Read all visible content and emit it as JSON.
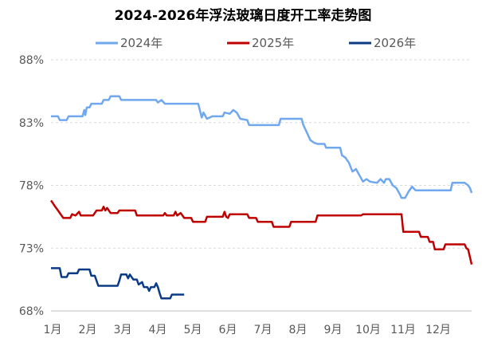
{
  "chart_data": {
    "type": "line",
    "title": "2024-2026年浮法玻璃日度开工率走势图",
    "xlabel": "",
    "ylabel": "",
    "x_ticks": [
      "1月",
      "2月",
      "3月",
      "4月",
      "5月",
      "6月",
      "7月",
      "8月",
      "9月",
      "10月",
      "11月",
      "12月"
    ],
    "y_ticks": [
      "68%",
      "73%",
      "78%",
      "83%",
      "88%"
    ],
    "ylim": [
      68,
      88
    ],
    "xlim": [
      0,
      12
    ],
    "grid": true,
    "legend_position": "top",
    "series": [
      {
        "name": "2024年",
        "color": "#6fa8ef",
        "points": [
          [
            0.0,
            83.5
          ],
          [
            0.2,
            83.5
          ],
          [
            0.25,
            83.2
          ],
          [
            0.45,
            83.2
          ],
          [
            0.5,
            83.5
          ],
          [
            0.9,
            83.5
          ],
          [
            0.95,
            84.0
          ],
          [
            0.98,
            83.6
          ],
          [
            1.02,
            84.2
          ],
          [
            1.1,
            84.2
          ],
          [
            1.15,
            84.5
          ],
          [
            1.45,
            84.5
          ],
          [
            1.5,
            84.8
          ],
          [
            1.65,
            84.8
          ],
          [
            1.7,
            85.1
          ],
          [
            1.95,
            85.1
          ],
          [
            2.0,
            84.8
          ],
          [
            3.0,
            84.8
          ],
          [
            3.05,
            84.6
          ],
          [
            3.15,
            84.8
          ],
          [
            3.25,
            84.5
          ],
          [
            4.2,
            84.5
          ],
          [
            4.3,
            83.4
          ],
          [
            4.35,
            83.8
          ],
          [
            4.45,
            83.3
          ],
          [
            4.6,
            83.5
          ],
          [
            4.9,
            83.5
          ],
          [
            4.95,
            83.8
          ],
          [
            5.1,
            83.7
          ],
          [
            5.2,
            84.0
          ],
          [
            5.3,
            83.8
          ],
          [
            5.4,
            83.3
          ],
          [
            5.6,
            83.2
          ],
          [
            5.65,
            82.8
          ],
          [
            6.5,
            82.8
          ],
          [
            6.55,
            83.3
          ],
          [
            7.15,
            83.3
          ],
          [
            7.2,
            82.8
          ],
          [
            7.3,
            82.2
          ],
          [
            7.4,
            81.6
          ],
          [
            7.5,
            81.4
          ],
          [
            7.6,
            81.3
          ],
          [
            7.8,
            81.3
          ],
          [
            7.85,
            81.0
          ],
          [
            8.25,
            81.0
          ],
          [
            8.3,
            80.4
          ],
          [
            8.4,
            80.2
          ],
          [
            8.5,
            79.8
          ],
          [
            8.6,
            79.1
          ],
          [
            8.7,
            79.3
          ],
          [
            8.8,
            78.8
          ],
          [
            8.9,
            78.3
          ],
          [
            9.0,
            78.5
          ],
          [
            9.1,
            78.3
          ],
          [
            9.3,
            78.2
          ],
          [
            9.4,
            78.5
          ],
          [
            9.5,
            78.2
          ],
          [
            9.55,
            78.5
          ],
          [
            9.65,
            78.5
          ],
          [
            9.75,
            78.0
          ],
          [
            9.85,
            77.8
          ],
          [
            9.95,
            77.3
          ],
          [
            10.0,
            77.0
          ],
          [
            10.1,
            77.0
          ],
          [
            10.2,
            77.5
          ],
          [
            10.3,
            77.9
          ],
          [
            10.4,
            77.6
          ],
          [
            11.4,
            77.6
          ],
          [
            11.45,
            78.2
          ],
          [
            11.8,
            78.2
          ],
          [
            11.9,
            78.0
          ],
          [
            11.95,
            77.8
          ],
          [
            12.0,
            77.4
          ]
        ]
      },
      {
        "name": "2025年",
        "color": "#c00000",
        "points": [
          [
            0.0,
            76.8
          ],
          [
            0.05,
            76.6
          ],
          [
            0.12,
            76.3
          ],
          [
            0.2,
            76.0
          ],
          [
            0.3,
            75.6
          ],
          [
            0.35,
            75.4
          ],
          [
            0.55,
            75.4
          ],
          [
            0.6,
            75.7
          ],
          [
            0.7,
            75.6
          ],
          [
            0.8,
            75.9
          ],
          [
            0.85,
            75.6
          ],
          [
            1.2,
            75.6
          ],
          [
            1.3,
            76.0
          ],
          [
            1.45,
            76.0
          ],
          [
            1.5,
            76.3
          ],
          [
            1.55,
            76.0
          ],
          [
            1.6,
            76.2
          ],
          [
            1.7,
            75.8
          ],
          [
            1.9,
            75.8
          ],
          [
            1.95,
            76.0
          ],
          [
            2.4,
            76.0
          ],
          [
            2.45,
            75.6
          ],
          [
            3.2,
            75.6
          ],
          [
            3.25,
            75.8
          ],
          [
            3.3,
            75.6
          ],
          [
            3.5,
            75.6
          ],
          [
            3.55,
            75.9
          ],
          [
            3.6,
            75.6
          ],
          [
            3.7,
            75.8
          ],
          [
            3.8,
            75.4
          ],
          [
            4.0,
            75.4
          ],
          [
            4.05,
            75.1
          ],
          [
            4.4,
            75.1
          ],
          [
            4.45,
            75.5
          ],
          [
            4.9,
            75.5
          ],
          [
            4.95,
            75.9
          ],
          [
            5.0,
            75.5
          ],
          [
            5.05,
            75.4
          ],
          [
            5.1,
            75.7
          ],
          [
            5.6,
            75.7
          ],
          [
            5.65,
            75.4
          ],
          [
            5.85,
            75.4
          ],
          [
            5.9,
            75.1
          ],
          [
            6.3,
            75.1
          ],
          [
            6.35,
            74.7
          ],
          [
            6.8,
            74.7
          ],
          [
            6.85,
            75.1
          ],
          [
            7.55,
            75.1
          ],
          [
            7.6,
            75.6
          ],
          [
            8.85,
            75.6
          ],
          [
            8.9,
            75.7
          ],
          [
            10.0,
            75.7
          ],
          [
            10.05,
            74.3
          ],
          [
            10.5,
            74.3
          ],
          [
            10.55,
            73.9
          ],
          [
            10.75,
            73.9
          ],
          [
            10.8,
            73.5
          ],
          [
            10.9,
            73.5
          ],
          [
            10.95,
            72.9
          ],
          [
            11.2,
            72.9
          ],
          [
            11.25,
            73.3
          ],
          [
            11.8,
            73.3
          ],
          [
            11.85,
            73.0
          ],
          [
            11.9,
            72.9
          ],
          [
            12.0,
            71.7
          ]
        ]
      },
      {
        "name": "2026年",
        "color": "#0b3b86",
        "points": [
          [
            0.0,
            71.4
          ],
          [
            0.25,
            71.4
          ],
          [
            0.3,
            70.7
          ],
          [
            0.45,
            70.7
          ],
          [
            0.5,
            71.0
          ],
          [
            0.75,
            71.0
          ],
          [
            0.8,
            71.3
          ],
          [
            1.1,
            71.3
          ],
          [
            1.15,
            70.8
          ],
          [
            1.25,
            70.8
          ],
          [
            1.3,
            70.4
          ],
          [
            1.35,
            70.0
          ],
          [
            1.9,
            70.0
          ],
          [
            1.95,
            70.4
          ],
          [
            2.0,
            70.9
          ],
          [
            2.15,
            70.9
          ],
          [
            2.2,
            70.6
          ],
          [
            2.25,
            70.9
          ],
          [
            2.35,
            70.5
          ],
          [
            2.45,
            70.5
          ],
          [
            2.5,
            70.1
          ],
          [
            2.6,
            70.3
          ],
          [
            2.65,
            69.9
          ],
          [
            2.75,
            69.9
          ],
          [
            2.8,
            69.6
          ],
          [
            2.85,
            69.9
          ],
          [
            2.95,
            69.9
          ],
          [
            3.0,
            70.2
          ],
          [
            3.05,
            69.9
          ],
          [
            3.1,
            69.4
          ],
          [
            3.15,
            69.0
          ],
          [
            3.4,
            69.0
          ],
          [
            3.45,
            69.3
          ],
          [
            3.8,
            69.3
          ]
        ]
      }
    ]
  }
}
